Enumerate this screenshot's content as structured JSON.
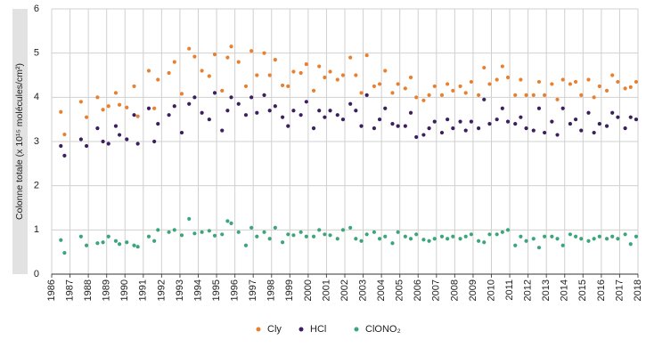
{
  "chart_data": {
    "type": "scatter",
    "y_label": "Colonne totale (x 10¹⁵ molécules/cm²)",
    "x": [
      1986.5,
      1986.7,
      1987.6,
      1987.9,
      1988.5,
      1988.8,
      1989.1,
      1989.5,
      1989.7,
      1990.1,
      1990.5,
      1990.7,
      1991.3,
      1991.6,
      1991.8,
      1992.4,
      1992.7,
      1993.1,
      1993.5,
      1993.8,
      1994.2,
      1994.6,
      1994.9,
      1995.3,
      1995.6,
      1995.8,
      1996.2,
      1996.6,
      1996.9,
      1997.2,
      1997.6,
      1997.9,
      1998.2,
      1998.6,
      1998.9,
      1999.2,
      1999.6,
      1999.9,
      2000.3,
      2000.6,
      2000.9,
      2001.2,
      2001.6,
      2001.9,
      2002.3,
      2002.6,
      2002.9,
      2003.2,
      2003.6,
      2003.9,
      2004.2,
      2004.6,
      2004.9,
      2005.3,
      2005.6,
      2005.9,
      2006.3,
      2006.6,
      2006.9,
      2007.3,
      2007.6,
      2007.9,
      2008.3,
      2008.6,
      2008.9,
      2009.3,
      2009.6,
      2009.9,
      2010.3,
      2010.6,
      2010.9,
      2011.3,
      2011.6,
      2011.9,
      2012.3,
      2012.6,
      2012.9,
      2013.3,
      2013.6,
      2013.9,
      2014.3,
      2014.6,
      2014.9,
      2015.3,
      2015.6,
      2015.9,
      2016.3,
      2016.6,
      2016.9,
      2017.3,
      2017.6,
      2017.9
    ],
    "series": [
      {
        "name": "Cly",
        "color": "#e8802f",
        "values": [
          3.67,
          3.16,
          3.9,
          3.55,
          4.0,
          3.72,
          3.8,
          4.1,
          3.83,
          3.77,
          4.25,
          3.57,
          4.6,
          3.75,
          4.4,
          4.55,
          4.8,
          4.08,
          5.1,
          4.92,
          4.6,
          4.48,
          4.97,
          4.15,
          4.9,
          5.15,
          4.8,
          4.25,
          5.05,
          4.5,
          5.0,
          4.5,
          4.85,
          4.27,
          4.25,
          4.58,
          4.55,
          4.75,
          4.15,
          4.7,
          4.45,
          4.58,
          4.4,
          4.5,
          4.9,
          4.5,
          4.1,
          4.95,
          4.25,
          4.3,
          4.6,
          4.1,
          4.3,
          4.2,
          4.45,
          4.0,
          3.93,
          4.05,
          4.25,
          4.05,
          4.3,
          4.15,
          4.25,
          4.1,
          4.35,
          4.05,
          4.67,
          4.3,
          4.4,
          4.7,
          4.45,
          4.05,
          4.4,
          4.05,
          4.05,
          4.35,
          4.05,
          4.3,
          3.95,
          4.4,
          4.3,
          4.35,
          4.05,
          4.4,
          4.0,
          4.25,
          4.15,
          4.5,
          4.35,
          4.2,
          4.23,
          4.35
        ]
      },
      {
        "name": "HCl",
        "color": "#3b1f5e",
        "values": [
          2.9,
          2.68,
          3.05,
          2.9,
          3.3,
          3.0,
          2.95,
          3.35,
          3.15,
          3.05,
          3.6,
          2.95,
          3.75,
          3.0,
          3.4,
          3.6,
          3.8,
          3.2,
          3.85,
          4.0,
          3.65,
          3.5,
          4.1,
          3.25,
          3.7,
          4.0,
          3.85,
          3.6,
          4.0,
          3.65,
          4.05,
          3.7,
          3.8,
          3.55,
          3.35,
          3.7,
          3.6,
          3.9,
          3.3,
          3.7,
          3.55,
          3.7,
          3.6,
          3.5,
          3.85,
          3.7,
          3.35,
          4.05,
          3.3,
          3.5,
          3.75,
          3.4,
          3.35,
          3.35,
          3.65,
          3.1,
          3.15,
          3.3,
          3.45,
          3.2,
          3.5,
          3.3,
          3.45,
          3.25,
          3.45,
          3.3,
          3.95,
          3.4,
          3.5,
          3.75,
          3.45,
          3.4,
          3.55,
          3.3,
          3.25,
          3.75,
          3.2,
          3.45,
          3.15,
          3.75,
          3.4,
          3.5,
          3.25,
          3.65,
          3.2,
          3.4,
          3.35,
          3.65,
          3.55,
          3.3,
          3.55,
          3.5
        ]
      },
      {
        "name": "ClONO₂",
        "color": "#3da57b",
        "values": [
          0.77,
          0.48,
          0.85,
          0.65,
          0.7,
          0.72,
          0.85,
          0.75,
          0.68,
          0.72,
          0.65,
          0.62,
          0.85,
          0.75,
          1.0,
          0.95,
          1.0,
          0.88,
          1.25,
          0.92,
          0.95,
          0.98,
          0.87,
          0.9,
          1.2,
          1.15,
          0.95,
          0.65,
          1.05,
          0.85,
          0.95,
          0.8,
          1.05,
          0.72,
          0.9,
          0.88,
          0.95,
          0.85,
          0.85,
          1.0,
          0.9,
          0.88,
          0.8,
          1.0,
          1.05,
          0.8,
          0.75,
          0.9,
          0.95,
          0.8,
          0.85,
          0.7,
          0.95,
          0.85,
          0.8,
          0.9,
          0.78,
          0.75,
          0.8,
          0.85,
          0.8,
          0.85,
          0.8,
          0.85,
          0.9,
          0.75,
          0.72,
          0.9,
          0.9,
          0.95,
          1.0,
          0.65,
          0.85,
          0.75,
          0.8,
          0.6,
          0.85,
          0.85,
          0.8,
          0.65,
          0.9,
          0.85,
          0.8,
          0.75,
          0.8,
          0.85,
          0.8,
          0.85,
          0.8,
          0.9,
          0.68,
          0.85
        ]
      }
    ],
    "xlim": [
      1986,
      2018
    ],
    "xticks": [
      1986,
      1987,
      1988,
      1989,
      1990,
      1991,
      1992,
      1993,
      1994,
      1995,
      1996,
      1997,
      1998,
      1999,
      2000,
      2001,
      2002,
      2003,
      2004,
      2005,
      2006,
      2007,
      2008,
      2009,
      2010,
      2011,
      2012,
      2013,
      2014,
      2015,
      2016,
      2017,
      2018
    ],
    "ylim": [
      0,
      6
    ],
    "yticks": [
      0,
      1,
      2,
      3,
      4,
      5,
      6
    ],
    "grid": true
  }
}
